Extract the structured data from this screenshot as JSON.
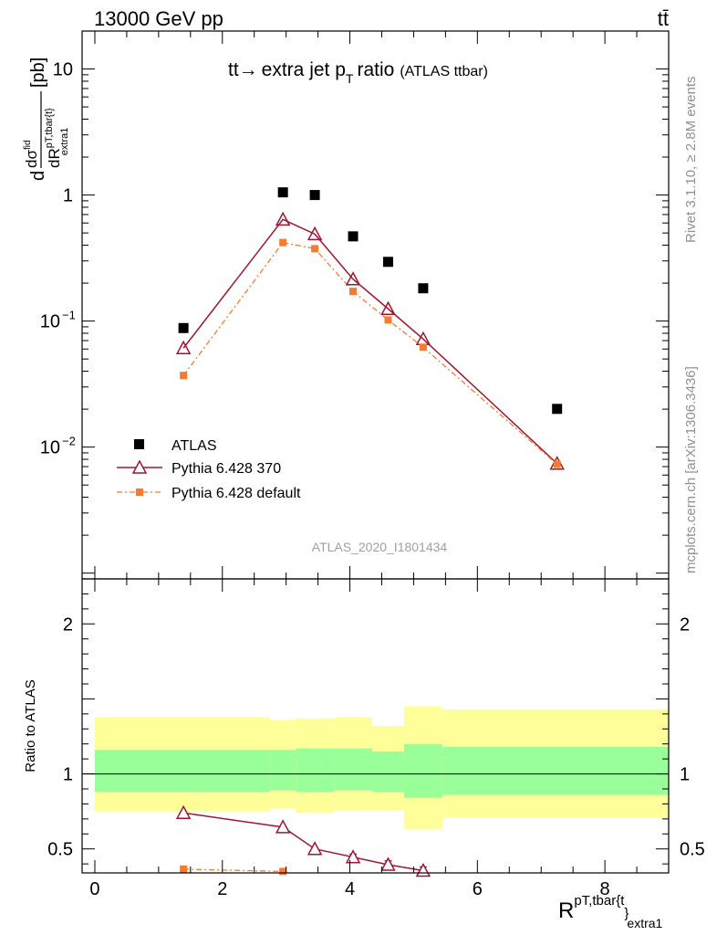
{
  "header": {
    "left": "13000 GeV pp",
    "right": "tt̄"
  },
  "side_labels": {
    "rivet": "Rivet 3.1.10, ≥ 2.8M events",
    "mcplots": "mcplots.cern.ch [arXiv:1306.3436]"
  },
  "chart_data": [
    {
      "type": "scatter",
      "panel": "main",
      "title": "tt→ extra jet pT ratio",
      "title_suffix": "(ATLAS ttbar)",
      "ylabel": "dσ^fid / dR^{pT,tbar{t}}_{extra1} [pb]",
      "ylabel_unit": "[pb]",
      "yscale": "log",
      "ylim": [
        0.0009,
        20
      ],
      "xlim": [
        -0.2,
        9.0
      ],
      "y_ticks": [
        {
          "value": 0.01,
          "label": "10",
          "exp": "−2"
        },
        {
          "value": 0.1,
          "label": "10",
          "exp": "−1"
        },
        {
          "value": 1,
          "label": "1",
          "exp": ""
        },
        {
          "value": 10,
          "label": "10",
          "exp": ""
        }
      ],
      "watermark": "ATLAS_2020_I1801434",
      "legend": [
        "ATLAS",
        "Pythia 6.428 370",
        "Pythia 6.428 default"
      ],
      "series": [
        {
          "name": "ATLAS",
          "color": "#000000",
          "marker": "square",
          "x": [
            1.39,
            2.95,
            3.45,
            4.05,
            4.6,
            5.15,
            7.25
          ],
          "y": [
            0.088,
            1.05,
            1.0,
            0.47,
            0.295,
            0.182,
            0.0201
          ]
        },
        {
          "name": "Pythia 6.428 370",
          "color": "#a01630",
          "marker": "triangle-open",
          "line": "solid",
          "x": [
            1.39,
            2.95,
            3.45,
            4.05,
            4.6,
            5.15,
            7.25
          ],
          "y": [
            0.061,
            0.64,
            0.49,
            0.215,
            0.125,
            0.072,
            0.0074
          ]
        },
        {
          "name": "Pythia 6.428 default",
          "color": "#f47c30",
          "marker": "square-small",
          "line": "dashdot",
          "x": [
            1.39,
            2.95,
            3.45,
            4.05,
            4.6,
            5.15,
            7.25
          ],
          "y": [
            0.037,
            0.42,
            0.375,
            0.172,
            0.102,
            0.062,
            0.0073
          ]
        }
      ]
    },
    {
      "type": "scatter",
      "panel": "ratio",
      "ylabel": "Ratio to ATLAS",
      "xlabel": "R^{pT,tbar{t}}_{extra1}",
      "ylim": [
        0.34,
        2.3
      ],
      "xlim": [
        -0.2,
        9.0
      ],
      "x_ticks": [
        0,
        2,
        4,
        6,
        8
      ],
      "y_ticks": [
        0.5,
        1,
        2
      ],
      "reference": 1.0,
      "bands": [
        {
          "x0": 0.0,
          "x1": 2.75,
          "inner": [
            0.88,
            1.16
          ],
          "outer": [
            0.75,
            1.38
          ]
        },
        {
          "x0": 2.75,
          "x1": 3.15,
          "inner": [
            0.89,
            1.16
          ],
          "outer": [
            0.77,
            1.36
          ]
        },
        {
          "x0": 3.15,
          "x1": 3.75,
          "inner": [
            0.88,
            1.17
          ],
          "outer": [
            0.74,
            1.37
          ]
        },
        {
          "x0": 3.75,
          "x1": 4.35,
          "inner": [
            0.89,
            1.17
          ],
          "outer": [
            0.76,
            1.38
          ]
        },
        {
          "x0": 4.35,
          "x1": 4.85,
          "inner": [
            0.88,
            1.15
          ],
          "outer": [
            0.76,
            1.32
          ]
        },
        {
          "x0": 4.85,
          "x1": 5.45,
          "inner": [
            0.84,
            1.2
          ],
          "outer": [
            0.63,
            1.45
          ]
        },
        {
          "x0": 5.45,
          "x1": 9.0,
          "inner": [
            0.86,
            1.18
          ],
          "outer": [
            0.71,
            1.43
          ]
        }
      ],
      "series": [
        {
          "name": "Pythia 6.428 370",
          "color": "#a01630",
          "x": [
            1.39,
            2.95,
            3.45,
            4.05,
            4.6,
            5.15
          ],
          "y": [
            0.74,
            0.645,
            0.5,
            0.445,
            0.395,
            0.355
          ],
          "yerr": [
            0.0,
            0.0,
            0.0,
            0.02,
            0.025,
            0.025
          ]
        },
        {
          "name": "Pythia 6.428 default",
          "color": "#f47c30",
          "x": [
            1.39,
            2.95
          ],
          "y": [
            0.365,
            0.35
          ],
          "yerr": [
            0.02,
            0.0
          ]
        }
      ]
    }
  ]
}
